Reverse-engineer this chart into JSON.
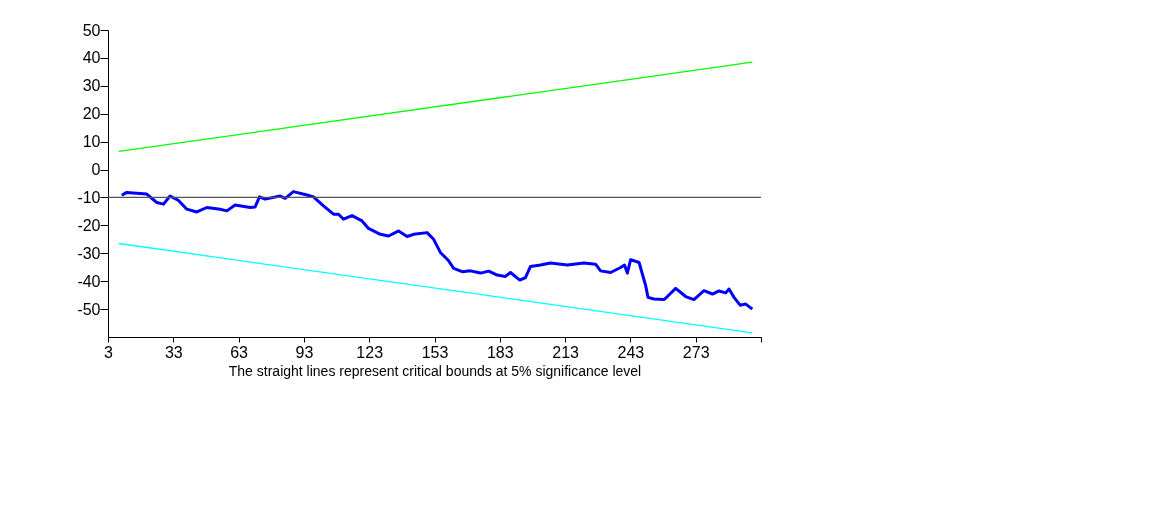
{
  "chart_data": {
    "type": "line",
    "xlabel": "The straight lines represent critical bounds at 5% significance level",
    "xlim": [
      3,
      303
    ],
    "xticks": [
      3,
      33,
      63,
      93,
      123,
      153,
      183,
      213,
      243,
      273,
      {
        "value": 303,
        "label": null
      }
    ],
    "ylim": [
      -60,
      50
    ],
    "yticks": [
      -50,
      -40,
      -30,
      -20,
      -10,
      0,
      10,
      20,
      30,
      40,
      50
    ],
    "marker": "none",
    "line_style": "solid",
    "ref_lines": [
      {
        "axis": "y",
        "value": -10,
        "label": null,
        "color": "#555555"
      }
    ],
    "series": [
      {
        "color": "#0000ff",
        "x": [
          9.3,
          11.6,
          20.8,
          25.4,
          28.5,
          31.5,
          35.3,
          39.2,
          43.8,
          48.4,
          54.5,
          57.6,
          61.4,
          68.3,
          70.6,
          72.6,
          75.2,
          82.1,
          84.4,
          88.2,
          94.4,
          97.4,
          102,
          106.6,
          108.9,
          111.2,
          115.1,
          119.7,
          122.7,
          128.1,
          131.9,
          136.5,
          140.4,
          143.4,
          149.6,
          152.6,
          155.7,
          159.5,
          161.8,
          165.7,
          169.5,
          174.1,
          177.9,
          181.8,
          185.6,
          187.9,
          192.2,
          194.8,
          197.1,
          201.7,
          206.3,
          214,
          221.6,
          227,
          229.3,
          233.9,
          238.5,
          240.3,
          241.6,
          243.1,
          247,
          250,
          251.1,
          253.8,
          258.4,
          260,
          263.8,
          268.4,
          272.2,
          276.8,
          280.7,
          283.7,
          286.8,
          288.3,
          290.6,
          293.4,
          296,
          299
        ],
        "values": [
          -9.2,
          -8.2,
          -8.8,
          -11.8,
          -12.4,
          -9.5,
          -11,
          -14.2,
          -15.2,
          -13.6,
          -14.2,
          -14.8,
          -12.7,
          -13.6,
          -13.4,
          -9.8,
          -10.6,
          -9.5,
          -10.3,
          -7.9,
          -9.1,
          -9.8,
          -13,
          -16,
          -16,
          -17.8,
          -16.5,
          -18.4,
          -21.1,
          -23.2,
          -23.8,
          -22,
          -24,
          -23.2,
          -22.6,
          -25,
          -29.7,
          -32.7,
          -35.4,
          -36.6,
          -36.3,
          -37.1,
          -36.4,
          -37.8,
          -38.3,
          -36.9,
          -39.6,
          -38.7,
          -34.7,
          -34.2,
          -33.5,
          -34.2,
          -33.5,
          -33.9,
          -36.3,
          -36.9,
          -35.1,
          -34.2,
          -37.1,
          -32.3,
          -33.3,
          -41.6,
          -45.8,
          -46.4,
          -46.6,
          -45.5,
          -42.6,
          -45.5,
          -46.6,
          -43.4,
          -44.6,
          -43.5,
          -44.2,
          -42.8,
          -45.8,
          -48.6,
          -48.2,
          -50
        ]
      },
      {
        "color": "#00ff00",
        "x": [
          8,
          299
        ],
        "values": [
          6.5,
          38.5
        ]
      },
      {
        "color": "#00ffff",
        "x": [
          8,
          299
        ],
        "values": [
          -26.5,
          -58.5
        ]
      }
    ]
  }
}
